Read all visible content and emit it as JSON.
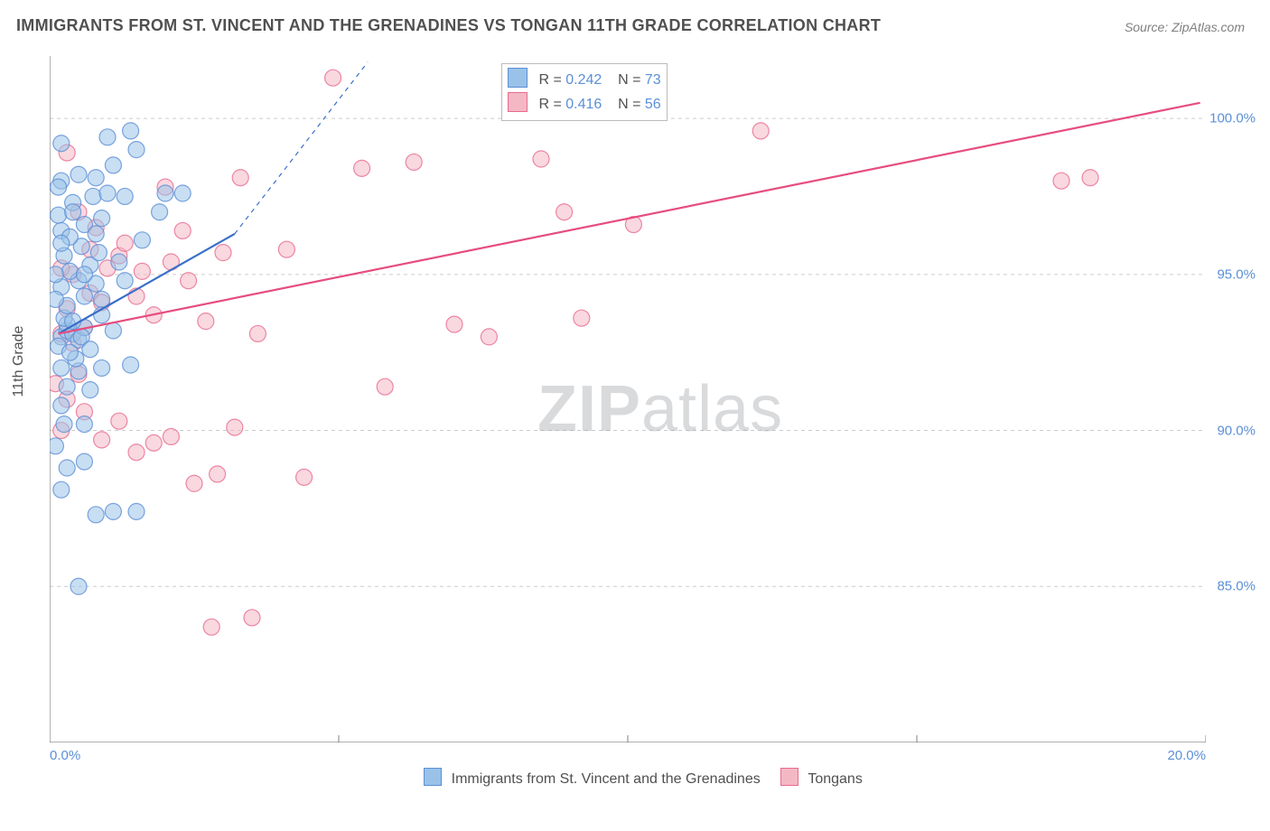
{
  "title": "IMMIGRANTS FROM ST. VINCENT AND THE GRENADINES VS TONGAN 11TH GRADE CORRELATION CHART",
  "source": "Source: ZipAtlas.com",
  "watermark": {
    "text_bold": "ZIP",
    "text_light": "atlas",
    "color": "#9aa0a6",
    "opacity": 0.38,
    "fontsize": 72
  },
  "y_axis_label": "11th Grade",
  "colors": {
    "series1_fill": "#9ac2e8",
    "series1_stroke": "#5b8fd6",
    "series2_fill": "#f4b8c4",
    "series2_stroke": "#e86b90",
    "grid": "#cccccc",
    "axis": "#808080",
    "tick_text": "#5b8fd6",
    "title_text": "#505050",
    "trend1": "#3a6fc9",
    "trend2": "#e64d7e",
    "background": "#ffffff"
  },
  "chart": {
    "type": "scatter",
    "xlim": [
      0,
      20
    ],
    "ylim": [
      80,
      102
    ],
    "x_ticks": [
      0,
      5,
      10,
      15,
      20
    ],
    "x_tick_labels": [
      "0.0%",
      "",
      "",
      "",
      "20.0%"
    ],
    "y_ticks": [
      85,
      90,
      95,
      100
    ],
    "y_tick_labels": [
      "85.0%",
      "90.0%",
      "95.0%",
      "100.0%"
    ],
    "gridlines_y": [
      85,
      90,
      95,
      100
    ],
    "marker_radius": 9,
    "marker_opacity": 0.55,
    "trend_lines": [
      {
        "series": 1,
        "x1": 0.15,
        "y1": 93.1,
        "x2": 3.2,
        "y2": 96.3,
        "dash_ext_x2": 5.5,
        "dash_ext_y2": 101.8,
        "width": 2.2
      },
      {
        "series": 2,
        "x1": 0.15,
        "y1": 93.1,
        "x2": 19.9,
        "y2": 100.5,
        "width": 2.2
      }
    ]
  },
  "stat_box": {
    "rows": [
      {
        "series": 1,
        "R_label": "R =",
        "R": "0.242",
        "N_label": "N =",
        "N": "73"
      },
      {
        "series": 2,
        "R_label": "R =",
        "R": "0.416",
        "N_label": "N =",
        "N": "56"
      }
    ]
  },
  "bottom_legend": [
    {
      "series": 1,
      "label": "Immigrants from St. Vincent and the Grenadines"
    },
    {
      "series": 2,
      "label": "Tongans"
    }
  ],
  "series1_points": [
    [
      0.2,
      93.0
    ],
    [
      0.3,
      93.2
    ],
    [
      0.4,
      93.1
    ],
    [
      0.5,
      92.9
    ],
    [
      0.3,
      93.4
    ],
    [
      0.6,
      93.3
    ],
    [
      0.25,
      93.6
    ],
    [
      0.15,
      92.7
    ],
    [
      0.4,
      93.5
    ],
    [
      0.55,
      93.0
    ],
    [
      0.3,
      94.0
    ],
    [
      0.6,
      94.3
    ],
    [
      0.2,
      94.6
    ],
    [
      0.5,
      94.8
    ],
    [
      0.8,
      94.7
    ],
    [
      0.35,
      95.1
    ],
    [
      0.7,
      95.3
    ],
    [
      0.25,
      95.6
    ],
    [
      0.55,
      95.9
    ],
    [
      0.85,
      95.7
    ],
    [
      0.2,
      96.4
    ],
    [
      0.6,
      96.6
    ],
    [
      0.9,
      96.8
    ],
    [
      0.35,
      96.2
    ],
    [
      0.15,
      96.9
    ],
    [
      0.4,
      97.3
    ],
    [
      0.75,
      97.5
    ],
    [
      1.0,
      97.6
    ],
    [
      1.3,
      97.5
    ],
    [
      2.0,
      97.6
    ],
    [
      2.3,
      97.6
    ],
    [
      0.2,
      98.0
    ],
    [
      0.5,
      98.2
    ],
    [
      0.8,
      98.1
    ],
    [
      1.1,
      98.5
    ],
    [
      1.5,
      99.0
    ],
    [
      1.0,
      99.4
    ],
    [
      1.4,
      99.6
    ],
    [
      0.2,
      92.0
    ],
    [
      0.5,
      91.9
    ],
    [
      0.9,
      92.0
    ],
    [
      1.4,
      92.1
    ],
    [
      0.3,
      91.4
    ],
    [
      0.7,
      91.3
    ],
    [
      0.2,
      90.8
    ],
    [
      0.25,
      90.2
    ],
    [
      0.6,
      90.2
    ],
    [
      0.1,
      89.5
    ],
    [
      0.3,
      88.8
    ],
    [
      0.6,
      89.0
    ],
    [
      0.2,
      88.1
    ],
    [
      0.8,
      87.3
    ],
    [
      1.5,
      87.4
    ],
    [
      1.1,
      87.4
    ],
    [
      0.5,
      85.0
    ],
    [
      0.2,
      96.0
    ],
    [
      0.9,
      94.2
    ],
    [
      1.2,
      95.4
    ],
    [
      1.6,
      96.1
    ],
    [
      1.9,
      97.0
    ],
    [
      0.45,
      92.3
    ],
    [
      0.7,
      92.6
    ],
    [
      0.9,
      93.7
    ],
    [
      1.1,
      93.2
    ],
    [
      1.3,
      94.8
    ],
    [
      0.15,
      97.8
    ],
    [
      0.4,
      97.0
    ],
    [
      0.8,
      96.3
    ],
    [
      0.2,
      99.2
    ],
    [
      0.1,
      94.2
    ],
    [
      0.1,
      95.0
    ],
    [
      0.35,
      92.5
    ],
    [
      0.6,
      95.0
    ]
  ],
  "series2_points": [
    [
      0.2,
      93.1
    ],
    [
      0.4,
      92.8
    ],
    [
      0.6,
      93.3
    ],
    [
      0.3,
      93.9
    ],
    [
      0.5,
      91.8
    ],
    [
      0.7,
      94.4
    ],
    [
      0.9,
      94.1
    ],
    [
      1.2,
      95.6
    ],
    [
      1.5,
      94.3
    ],
    [
      1.8,
      93.7
    ],
    [
      2.1,
      95.4
    ],
    [
      2.4,
      94.8
    ],
    [
      2.7,
      93.5
    ],
    [
      3.0,
      95.7
    ],
    [
      3.3,
      98.1
    ],
    [
      3.6,
      93.1
    ],
    [
      4.1,
      95.8
    ],
    [
      4.4,
      88.5
    ],
    [
      4.9,
      101.3
    ],
    [
      5.4,
      98.4
    ],
    [
      5.8,
      91.4
    ],
    [
      6.3,
      98.6
    ],
    [
      7.0,
      93.4
    ],
    [
      7.6,
      93.0
    ],
    [
      8.5,
      98.7
    ],
    [
      8.9,
      97.0
    ],
    [
      9.2,
      93.6
    ],
    [
      10.1,
      96.6
    ],
    [
      12.3,
      99.6
    ],
    [
      17.5,
      98.0
    ],
    [
      18.0,
      98.1
    ],
    [
      0.3,
      91.0
    ],
    [
      0.6,
      90.6
    ],
    [
      0.9,
      89.7
    ],
    [
      1.2,
      90.3
    ],
    [
      1.5,
      89.3
    ],
    [
      1.8,
      89.6
    ],
    [
      2.1,
      89.8
    ],
    [
      2.5,
      88.3
    ],
    [
      2.9,
      88.6
    ],
    [
      3.2,
      90.1
    ],
    [
      3.5,
      84.0
    ],
    [
      2.8,
      83.7
    ],
    [
      0.4,
      95.0
    ],
    [
      0.7,
      95.8
    ],
    [
      1.0,
      95.2
    ],
    [
      1.3,
      96.0
    ],
    [
      1.6,
      95.1
    ],
    [
      2.0,
      97.8
    ],
    [
      2.3,
      96.4
    ],
    [
      0.2,
      90.0
    ],
    [
      0.5,
      97.0
    ],
    [
      0.8,
      96.5
    ],
    [
      0.1,
      91.5
    ],
    [
      0.2,
      95.2
    ],
    [
      0.3,
      98.9
    ]
  ]
}
